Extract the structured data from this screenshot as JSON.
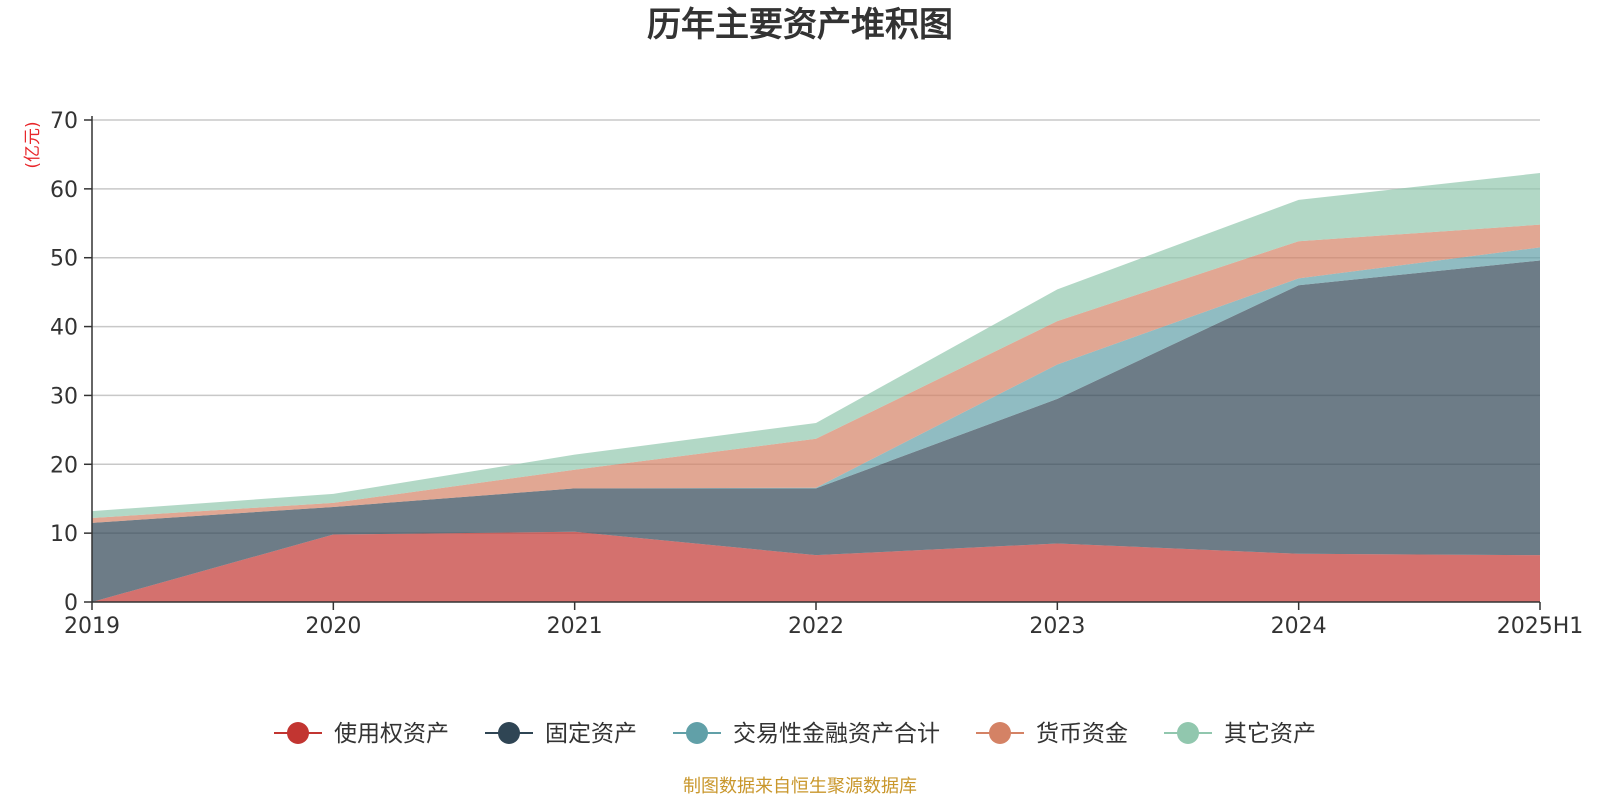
{
  "chart_data": {
    "type": "area",
    "title": "历年主要资产堆积图",
    "unit_label": "(亿元)",
    "categories": [
      "2019",
      "2020",
      "2021",
      "2022",
      "2023",
      "2024",
      "2025H1"
    ],
    "ylim": [
      0,
      70
    ],
    "y_ticks": [
      "0",
      "10",
      "20",
      "30",
      "40",
      "50",
      "60",
      "70"
    ],
    "stacked": true,
    "grid": true,
    "legend_position": "bottom",
    "series": [
      {
        "name": "使用权资产",
        "values": [
          0.0,
          9.8,
          10.2,
          6.8,
          8.5,
          7.0,
          6.8
        ],
        "color": "#c23531"
      },
      {
        "name": "固定资产",
        "values": [
          11.5,
          4.0,
          6.3,
          9.7,
          21.0,
          39.0,
          42.8
        ],
        "color": "#2f4554"
      },
      {
        "name": "交易性金融资产合计",
        "values": [
          0.0,
          0.0,
          0.0,
          0.1,
          5.0,
          1.0,
          1.9
        ],
        "color": "#61a0a8"
      },
      {
        "name": "货币资金",
        "values": [
          0.7,
          0.6,
          2.7,
          7.1,
          6.3,
          5.4,
          3.3
        ],
        "color": "#d48265"
      },
      {
        "name": "其它资产",
        "values": [
          1.0,
          1.3,
          2.2,
          2.3,
          4.6,
          6.0,
          7.5
        ],
        "color": "#91c7ae"
      }
    ]
  },
  "footer": {
    "source": "制图数据来自恒生聚源数据库",
    "source_color": "#c9972c"
  },
  "unit_color": "#e8262a"
}
